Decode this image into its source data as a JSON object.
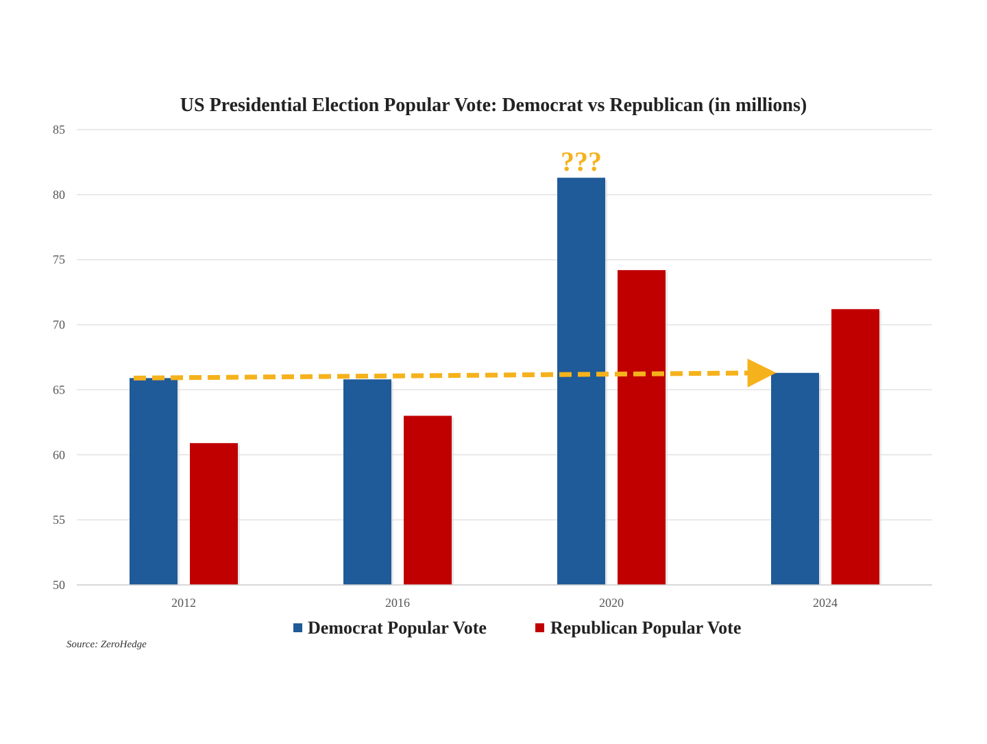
{
  "chart_data": {
    "type": "bar",
    "title": "US Presidential Election Popular Vote: Democrat vs Republican (in millions)",
    "categories": [
      "2012",
      "2016",
      "2020",
      "2024"
    ],
    "series": [
      {
        "name": "Democrat Popular Vote",
        "values": [
          65.9,
          65.8,
          81.3,
          66.3
        ],
        "color": "#1f5a99"
      },
      {
        "name": "Republican Popular Vote",
        "values": [
          60.9,
          63.0,
          74.2,
          71.2
        ],
        "color": "#c00000"
      }
    ],
    "ylim": [
      50,
      85
    ],
    "yticks": [
      50,
      55,
      60,
      65,
      70,
      75,
      80,
      85
    ],
    "grid": true,
    "legend_position": "bottom",
    "annotation": {
      "text": "???",
      "category": "2020",
      "series": "Democrat Popular Vote",
      "color": "#f5b21c"
    },
    "trend_arrow": {
      "from_category": "2012",
      "to_category": "2024",
      "start_value": 65.9,
      "end_value": 66.3,
      "style": "dashed",
      "color": "#f5b21c"
    },
    "source": "Source: ZeroHedge"
  }
}
